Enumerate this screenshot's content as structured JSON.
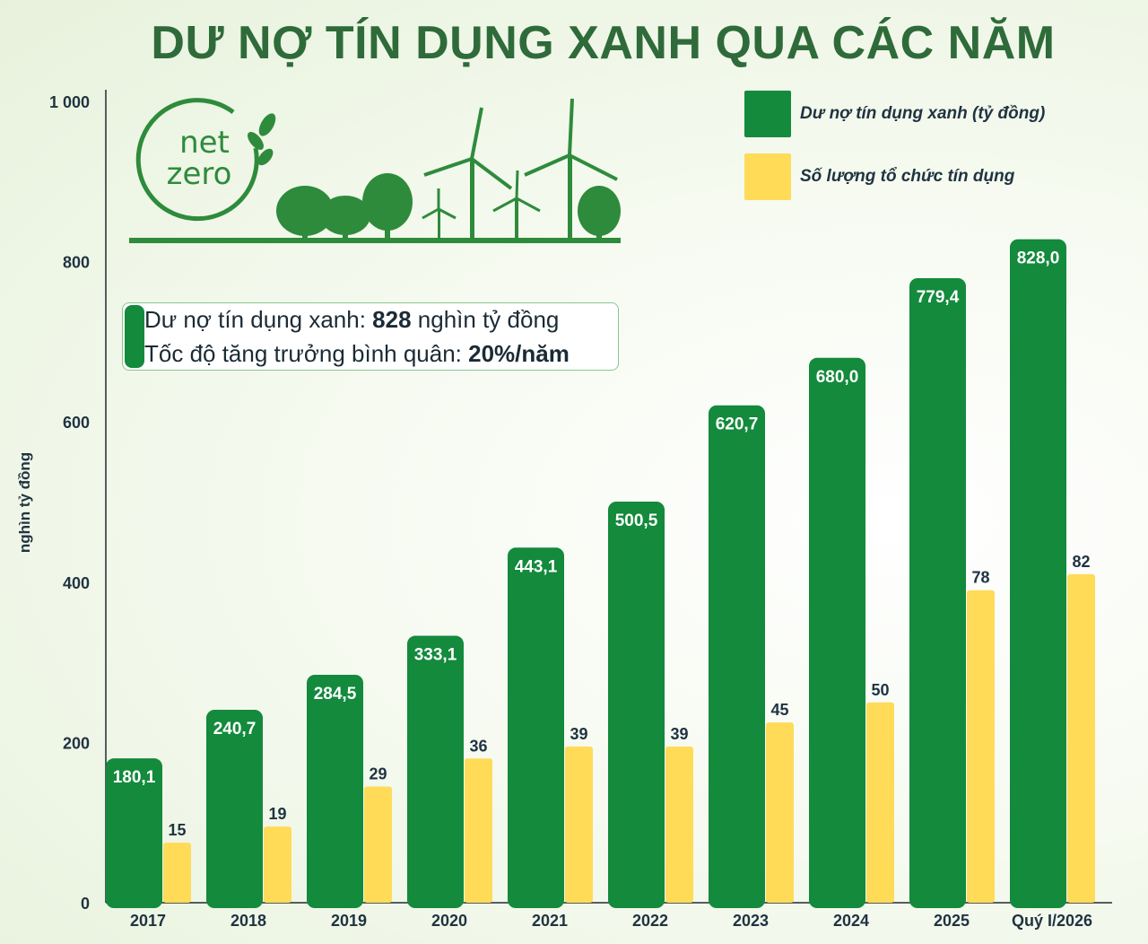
{
  "title": "DƯ NỢ TÍN DỤNG XANH QUA CÁC NĂM",
  "logo_text": [
    "net",
    "zero"
  ],
  "info": {
    "line1_prefix": "Dư nợ tín dụng xanh: ",
    "line1_value": "828",
    "line1_suffix": " nghìn tỷ đồng",
    "line2_prefix": "Tốc độ tăng trưởng bình quân: ",
    "line2_value": "20%/năm"
  },
  "colors": {
    "green": "#138a3c",
    "yellow": "#ffdb58",
    "title": "#2f6b3a"
  },
  "chart_data": {
    "type": "bar",
    "categories": [
      "2017",
      "2018",
      "2019",
      "2020",
      "2021",
      "2022",
      "2023",
      "2024",
      "2025",
      "Quý I/2026"
    ],
    "series": [
      {
        "name": "Dư nợ tín dụng xanh (tỷ đồng)",
        "values": [
          180.1,
          240.7,
          284.5,
          333.1,
          443.1,
          500.5,
          620.7,
          680.0,
          779.4,
          828.0
        ],
        "labels": [
          "180,1",
          "240,7",
          "284,5",
          "333,1",
          "443,1",
          "500,5",
          "620,7",
          "680,0",
          "779,4",
          "828,0"
        ],
        "color": "#138a3c"
      },
      {
        "name": "Số lượng tổ chức tín dụng",
        "values": [
          15,
          19,
          29,
          36,
          39,
          39,
          45,
          50,
          78,
          82
        ],
        "labels": [
          "15",
          "19",
          "29",
          "36",
          "39",
          "39",
          "45",
          "50",
          "78",
          "82"
        ],
        "color": "#ffdb58",
        "plotted_scale_factor": 5
      }
    ],
    "ylabel": "nghìn tỷ đồng",
    "ylim": [
      0,
      1000
    ],
    "yticks": [
      0,
      200,
      400,
      600,
      800,
      1000
    ],
    "ytick_labels": [
      "0",
      "200",
      "400",
      "600",
      "800",
      "1 000"
    ],
    "grid": false,
    "legend_position": "top-right"
  }
}
